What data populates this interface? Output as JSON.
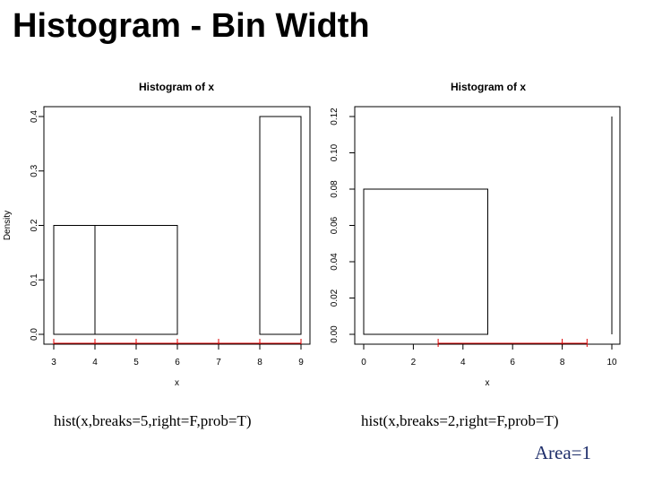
{
  "slide": {
    "title": "Histogram - Bin Width",
    "area_note": "Area=1",
    "area_note_color": "#1f2f6b"
  },
  "chart_data": [
    {
      "type": "bar",
      "title": "Histogram of x",
      "xlabel": "x",
      "ylabel": "Density",
      "xlim": [
        3,
        9
      ],
      "ylim": [
        0,
        0.4
      ],
      "x_ticks": [
        3,
        4,
        5,
        6,
        7,
        8,
        9
      ],
      "y_ticks": [
        0.0,
        0.1,
        0.2,
        0.3,
        0.4
      ],
      "y_tick_labels": [
        "0.0",
        "0.1",
        "0.2",
        "0.3",
        "0.4"
      ],
      "bins": [
        {
          "start": 3,
          "end": 4,
          "density": 0.2
        },
        {
          "start": 4,
          "end": 6,
          "density": 0.2
        },
        {
          "start": 6,
          "end": 8,
          "density": 0.0
        },
        {
          "start": 8,
          "end": 9,
          "density": 0.4
        }
      ],
      "rug": [
        3,
        4,
        5,
        6,
        7,
        8,
        9
      ],
      "rug_color": "#dd0000",
      "caption": "hist(x,breaks=5,right=F,prob=T)"
    },
    {
      "type": "bar",
      "title": "Histogram of x",
      "xlabel": "x",
      "ylabel": "",
      "xlim": [
        0,
        10
      ],
      "ylim": [
        0,
        0.12
      ],
      "x_ticks": [
        0,
        2,
        4,
        6,
        8,
        10
      ],
      "y_ticks": [
        0.0,
        0.02,
        0.04,
        0.06,
        0.08,
        0.1,
        0.12
      ],
      "y_tick_labels": [
        "0.00",
        "0.02",
        "0.04",
        "0.06",
        "0.08",
        "0.10",
        "0.12"
      ],
      "bins": [
        {
          "start": 0,
          "end": 5,
          "density": 0.08
        },
        {
          "start": 5,
          "end": 10,
          "density": 0.0
        },
        {
          "start": 10,
          "end": 10,
          "density": 0.12
        }
      ],
      "rug": [
        3,
        8,
        9
      ],
      "rug_color": "#dd0000",
      "caption": "hist(x,breaks=2,right=F,prob=T)"
    }
  ]
}
